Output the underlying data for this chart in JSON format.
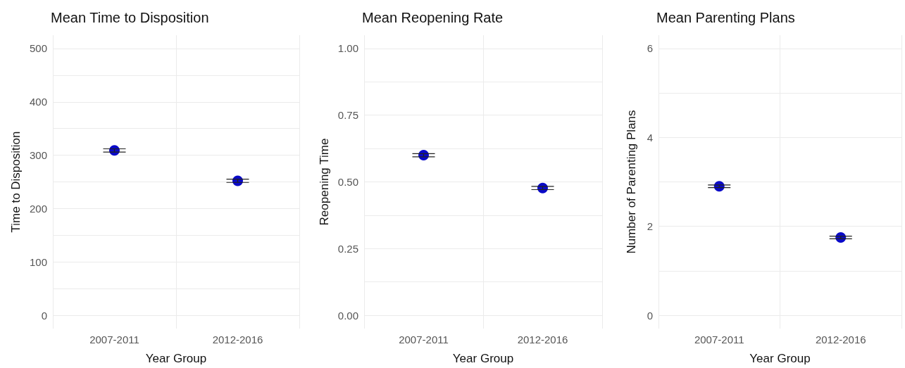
{
  "chart_data": [
    {
      "type": "scatter",
      "title": "Mean Time to Disposition",
      "xlabel": "Year Group",
      "ylabel": "Time to Disposition",
      "categories": [
        "2007-2011",
        "2012-2016"
      ],
      "series": [
        {
          "color": "#0a0ac8",
          "values": [
            309,
            252
          ],
          "errors": [
            3,
            3
          ]
        }
      ],
      "ylim": [
        -25,
        525
      ],
      "yticks": [
        0,
        {
          "value": 50,
          "label": null
        },
        100,
        {
          "value": 150,
          "label": null
        },
        200,
        {
          "value": 250,
          "label": null
        },
        300,
        {
          "value": 350,
          "label": null
        },
        400,
        {
          "value": 450,
          "label": null
        },
        500
      ],
      "grid": true,
      "marker": "circle"
    },
    {
      "type": "scatter",
      "title": "Mean Reopening Rate",
      "xlabel": "Year Group",
      "ylabel": "Reopening Time",
      "categories": [
        "2007-2011",
        "2012-2016"
      ],
      "series": [
        {
          "color": "#0a0ac8",
          "values": [
            0.6,
            0.477
          ],
          "errors": [
            0.006,
            0.006
          ]
        }
      ],
      "ylim": [
        -0.05,
        1.05
      ],
      "yticks": [
        {
          "value": 0,
          "label": "0.00"
        },
        {
          "value": 0.125,
          "label": null
        },
        {
          "value": 0.25,
          "label": "0.25"
        },
        {
          "value": 0.375,
          "label": null
        },
        {
          "value": 0.5,
          "label": "0.50"
        },
        {
          "value": 0.625,
          "label": null
        },
        {
          "value": 0.75,
          "label": "0.75"
        },
        {
          "value": 0.875,
          "label": null
        },
        {
          "value": 1,
          "label": "1.00"
        }
      ],
      "grid": true,
      "marker": "circle"
    },
    {
      "type": "scatter",
      "title": "Mean Parenting Plans",
      "xlabel": "Year Group",
      "ylabel": "Number of Parenting Plans",
      "categories": [
        "2007-2011",
        "2012-2016"
      ],
      "series": [
        {
          "color": "#0a0ac8",
          "values": [
            2.9,
            1.75
          ],
          "errors": [
            0.03,
            0.03
          ]
        }
      ],
      "ylim": [
        -0.3,
        6.3
      ],
      "yticks": [
        0,
        {
          "value": 1,
          "label": null
        },
        2,
        {
          "value": 3,
          "label": null
        },
        4,
        {
          "value": 5,
          "label": null
        },
        6
      ],
      "grid": true,
      "marker": "circle"
    }
  ]
}
